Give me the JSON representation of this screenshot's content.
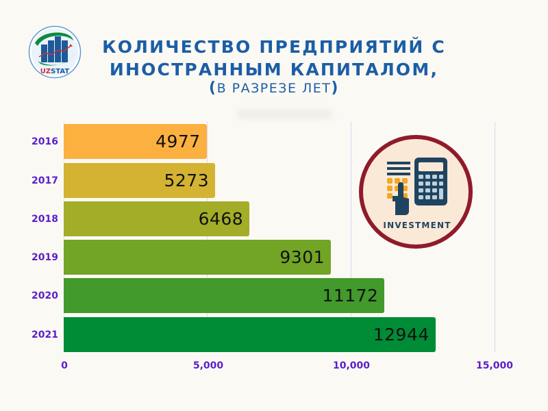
{
  "logo": {
    "text": "UZSTAT",
    "text_part1": "UZ",
    "text_part2": "STAT"
  },
  "header": {
    "title_line1": "КОЛИЧЕСТВО ПРЕДПРИЯТИЙ С",
    "title_line2": "ИНОСТРАННЫМ КАПИТАЛОМ,",
    "subtitle_open": "(",
    "subtitle_text": "В РАЗРЕЗЕ ЛЕТ",
    "subtitle_close": ")"
  },
  "illustration": {
    "label": "INVESTMENT"
  },
  "colors": {
    "background": "#FBF9F4",
    "title": "#1B5EA6",
    "axis_labels": "#5B1FC9",
    "bars": [
      "#FBB040",
      "#D4B232",
      "#A3AD27",
      "#72A425",
      "#42992C",
      "#008C36"
    ],
    "illustration_ring": "#8E1B2B",
    "illustration_fill": "#FBE9D8",
    "illustration_navy": "#1F4460",
    "illustration_orange": "#F5A623"
  },
  "chart_data": {
    "type": "bar",
    "orientation": "horizontal",
    "title": "КОЛИЧЕСТВО ПРЕДПРИЯТИЙ С ИНОСТРАННЫМ КАПИТАЛОМ, (В РАЗРЕЗЕ ЛЕТ)",
    "categories": [
      "2016",
      "2017",
      "2018",
      "2019",
      "2020",
      "2021"
    ],
    "values": [
      4977,
      5273,
      6468,
      9301,
      11172,
      12944
    ],
    "value_labels": [
      "4977",
      "5273",
      "6468",
      "9301",
      "11172",
      "12944"
    ],
    "xlabel": "",
    "ylabel": "",
    "xlim": [
      0,
      15000
    ],
    "x_ticks": [
      0,
      5000,
      10000,
      15000
    ],
    "x_tick_labels": [
      "0",
      "5,000",
      "10,000",
      "15,000"
    ],
    "grid": "vertical",
    "legend": "none"
  }
}
